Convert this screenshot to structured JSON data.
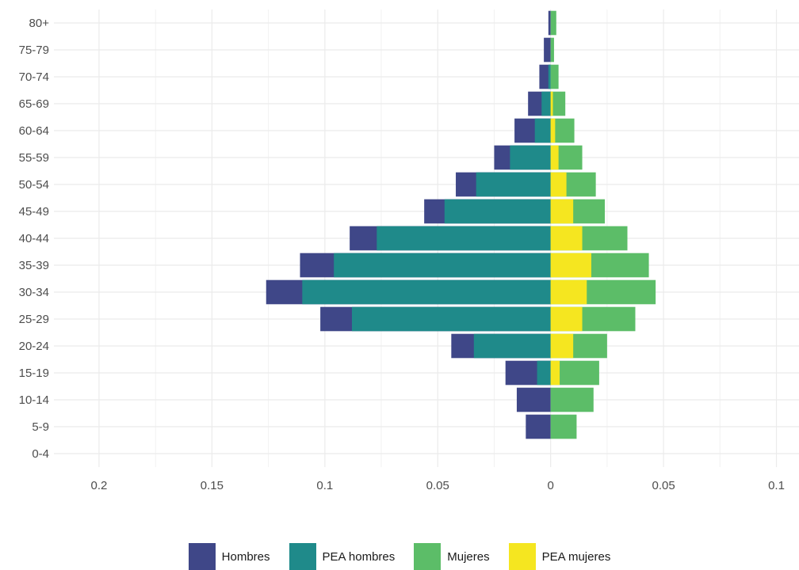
{
  "chart_data": {
    "type": "bar",
    "orientation": "horizontal",
    "chart_style": "population-pyramid",
    "categories": [
      "0-4",
      "5-9",
      "10-14",
      "15-19",
      "20-24",
      "25-29",
      "30-34",
      "35-39",
      "40-44",
      "45-49",
      "50-54",
      "55-59",
      "60-64",
      "65-69",
      "70-74",
      "75-79",
      "80+"
    ],
    "series": [
      {
        "name": "Hombres",
        "color": "#3f4788",
        "side": "left",
        "values": [
          0,
          0.011,
          0.015,
          0.02,
          0.044,
          0.102,
          0.126,
          0.111,
          0.089,
          0.056,
          0.042,
          0.025,
          0.016,
          0.01,
          0.005,
          0.003,
          0.001
        ]
      },
      {
        "name": "PEA hombres",
        "color": "#1f8a8a",
        "side": "left",
        "values": [
          0,
          0,
          0,
          0.006,
          0.034,
          0.088,
          0.11,
          0.096,
          0.077,
          0.047,
          0.033,
          0.018,
          0.007,
          0.004,
          0.001,
          0,
          0
        ]
      },
      {
        "name": "Mujeres",
        "color": "#5cbd68",
        "side": "right",
        "values": [
          0,
          0.0115,
          0.019,
          0.0215,
          0.025,
          0.0375,
          0.0465,
          0.0435,
          0.034,
          0.024,
          0.02,
          0.014,
          0.0105,
          0.0065,
          0.0035,
          0.0015,
          0.0025
        ]
      },
      {
        "name": "PEA mujeres",
        "color": "#f5e620",
        "side": "right",
        "values": [
          0,
          0,
          0,
          0.004,
          0.01,
          0.014,
          0.016,
          0.018,
          0.014,
          0.01,
          0.007,
          0.0035,
          0.002,
          0.001,
          0,
          0,
          0
        ]
      }
    ],
    "xlim": [
      -0.22,
      0.11
    ],
    "x_ticks": [
      -0.2,
      -0.15,
      -0.1,
      -0.05,
      0,
      0.05,
      0.1
    ],
    "x_tick_labels": [
      "0.2",
      "0.15",
      "0.1",
      "0.05",
      "0",
      "0.05",
      "0.1"
    ],
    "title": "",
    "xlabel": "",
    "ylabel": "",
    "grid": true,
    "legend_position": "bottom"
  },
  "legend": [
    {
      "label": "Hombres",
      "color": "#3f4788"
    },
    {
      "label": "PEA hombres",
      "color": "#1f8a8a"
    },
    {
      "label": "Mujeres",
      "color": "#5cbd68"
    },
    {
      "label": "PEA mujeres",
      "color": "#f5e620"
    }
  ]
}
